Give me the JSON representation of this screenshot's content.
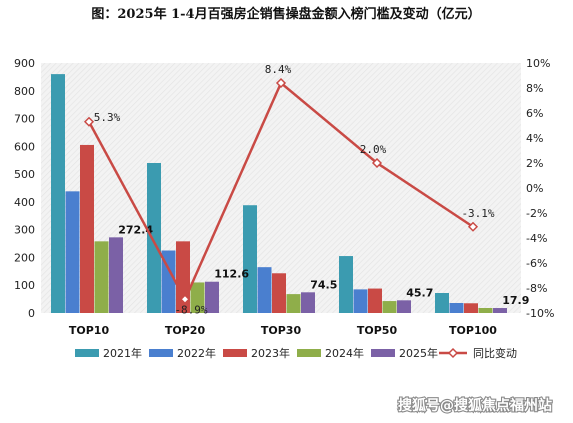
{
  "chart_data": {
    "type": "bar",
    "title": "图：2025年 1-4月百强房企销售操盘金额入榜门槛及变动（亿元）",
    "categories": [
      "TOP10",
      "TOP20",
      "TOP30",
      "TOP50",
      "TOP100"
    ],
    "series": [
      {
        "name": "2021年",
        "color": "#3b9bb0",
        "values": [
          860,
          540,
          388,
          205,
          72
        ]
      },
      {
        "name": "2022年",
        "color": "#4a7fcf",
        "values": [
          438,
          225,
          165,
          85,
          36
        ]
      },
      {
        "name": "2023年",
        "color": "#c94a45",
        "values": [
          605,
          258,
          143,
          88,
          35
        ]
      },
      {
        "name": "2024年",
        "color": "#8fae4a",
        "values": [
          258,
          110,
          68,
          43,
          18
        ]
      },
      {
        "name": "2025年",
        "color": "#7b61a6",
        "values": [
          272.4,
          112.6,
          74.5,
          45.7,
          17.9
        ]
      }
    ],
    "line_series": {
      "name": "同比变动",
      "color": "#c94a45",
      "values": [
        5.3,
        -8.9,
        8.4,
        2.0,
        -3.1
      ]
    },
    "data_labels": [
      "272.4",
      "112.6",
      "74.5",
      "45.7",
      "17.9"
    ],
    "line_labels": [
      "5.3%",
      "-8.9%",
      "8.4%",
      "2.0%",
      "-3.1%"
    ],
    "y_left": {
      "min": 0,
      "max": 900,
      "step": 100,
      "ticks": [
        "0",
        "100",
        "200",
        "300",
        "400",
        "500",
        "600",
        "700",
        "800",
        "900"
      ]
    },
    "y_right": {
      "min": -10,
      "max": 10,
      "step": 2,
      "ticks": [
        "-10%",
        "-8%",
        "-6%",
        "-4%",
        "-2%",
        "0%",
        "2%",
        "4%",
        "6%",
        "8%",
        "10%"
      ]
    },
    "grid": false,
    "legend_position": "bottom"
  },
  "watermark": "搜狐号@搜狐焦点福州站"
}
